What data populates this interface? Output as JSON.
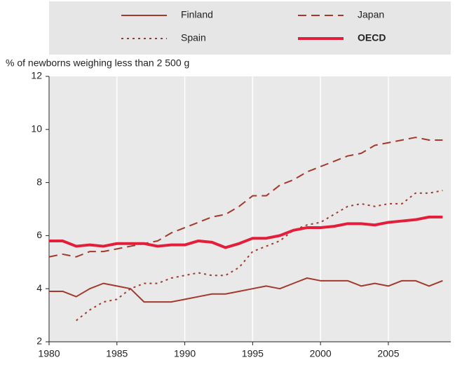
{
  "chart_data": {
    "type": "line",
    "y_label": "% of newborns weighing less than 2 500 g",
    "x": [
      1980,
      1981,
      1982,
      1983,
      1984,
      1985,
      1986,
      1987,
      1988,
      1989,
      1990,
      1991,
      1992,
      1993,
      1994,
      1995,
      1996,
      1997,
      1998,
      1999,
      2000,
      2001,
      2002,
      2003,
      2004,
      2005,
      2006,
      2007,
      2008,
      2009
    ],
    "series": [
      {
        "name": "Finland",
        "color": "#a3392c",
        "dash": "solid",
        "width": 2,
        "bold": false,
        "values": [
          3.9,
          3.9,
          3.7,
          4.0,
          4.2,
          4.1,
          4.0,
          3.5,
          3.5,
          3.5,
          3.6,
          3.7,
          3.8,
          3.8,
          3.9,
          4.0,
          4.1,
          4.0,
          4.2,
          4.4,
          4.3,
          4.3,
          4.3,
          4.1,
          4.2,
          4.1,
          4.3,
          4.3,
          4.1,
          4.3
        ]
      },
      {
        "name": "Japan",
        "color": "#a3392c",
        "dash": "dashed",
        "width": 2,
        "bold": false,
        "values": [
          5.2,
          5.3,
          5.2,
          5.4,
          5.4,
          5.5,
          5.6,
          5.7,
          5.8,
          6.1,
          6.3,
          6.5,
          6.7,
          6.8,
          7.1,
          7.5,
          7.5,
          7.9,
          8.1,
          8.4,
          8.6,
          8.8,
          9.0,
          9.1,
          9.4,
          9.5,
          9.6,
          9.7,
          9.6,
          9.6
        ]
      },
      {
        "name": "Spain",
        "color": "#a3392c",
        "dash": "dotted",
        "width": 2,
        "bold": false,
        "values": [
          null,
          null,
          2.8,
          3.2,
          3.5,
          3.6,
          4.0,
          4.2,
          4.2,
          4.4,
          4.5,
          4.6,
          4.5,
          4.5,
          4.8,
          5.4,
          5.6,
          5.8,
          6.2,
          6.4,
          6.5,
          6.8,
          7.1,
          7.2,
          7.1,
          7.2,
          7.2,
          7.6,
          7.6,
          7.7
        ]
      },
      {
        "name": "OECD",
        "color": "#e31e3a",
        "dash": "solid",
        "width": 4,
        "bold": true,
        "values": [
          5.8,
          5.8,
          5.6,
          5.65,
          5.6,
          5.7,
          5.7,
          5.7,
          5.6,
          5.65,
          5.65,
          5.8,
          5.75,
          5.55,
          5.7,
          5.9,
          5.9,
          6.0,
          6.2,
          6.3,
          6.3,
          6.35,
          6.45,
          6.45,
          6.4,
          6.5,
          6.55,
          6.6,
          6.7,
          6.7
        ]
      }
    ],
    "xlim": [
      1980,
      2009.6
    ],
    "xticks": [
      1980,
      1985,
      1990,
      1995,
      2000,
      2005
    ],
    "ylim": [
      2,
      12
    ],
    "yticks": [
      2,
      4,
      6,
      8,
      10,
      12
    ],
    "grid": "x",
    "legend": "top"
  }
}
